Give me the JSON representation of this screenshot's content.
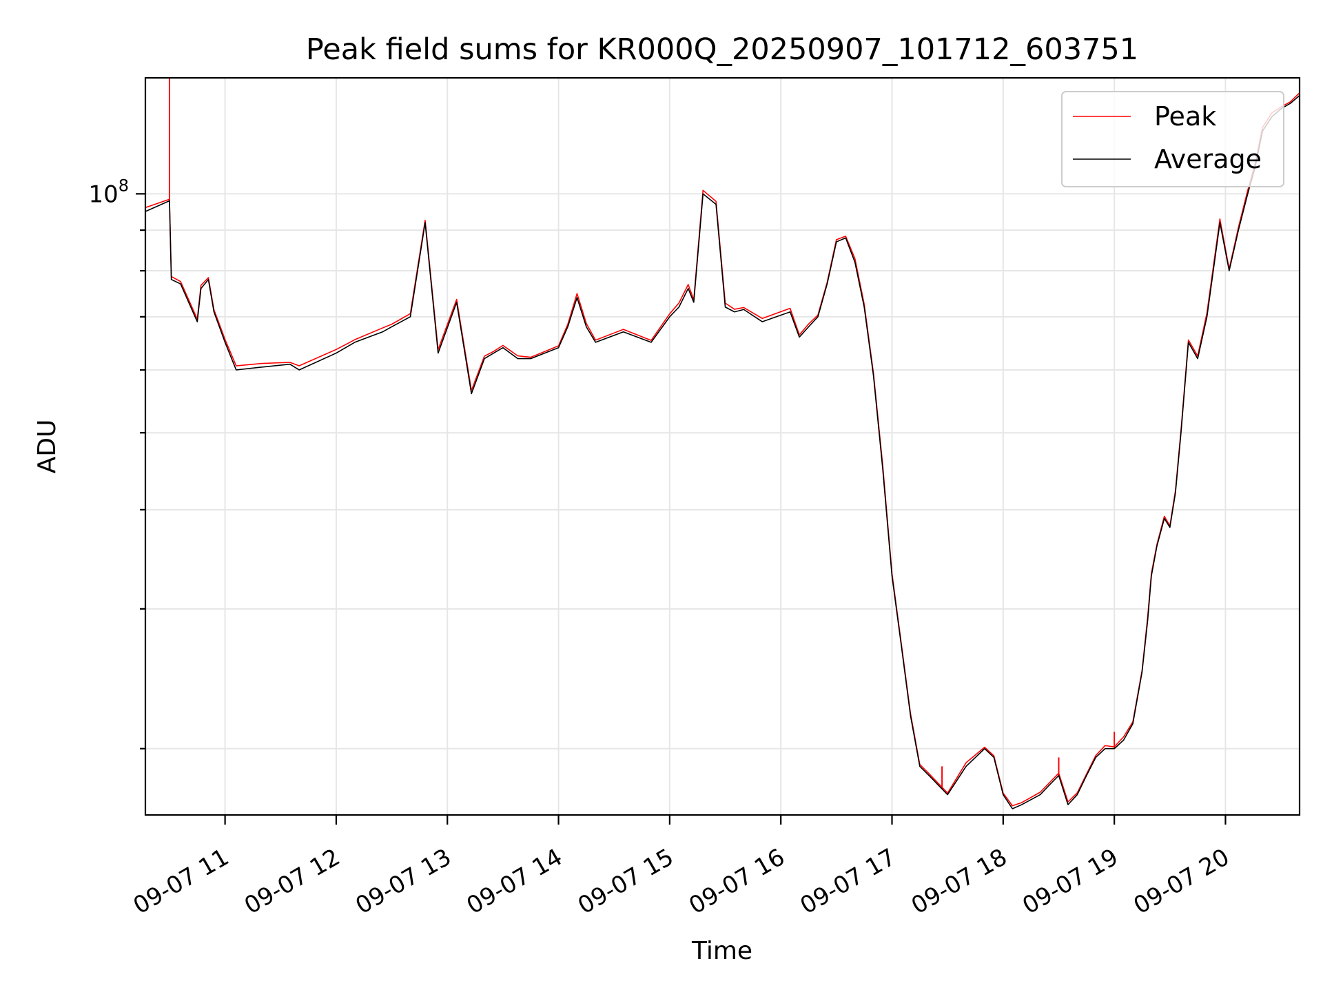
{
  "chart_data": {
    "type": "line",
    "title": "Peak field sums for KR000Q_20250907_101712_603751",
    "xlabel": "Time",
    "ylabel": "ADU",
    "y_scale": "log",
    "grid": true,
    "legend_position": "top-right",
    "x_range": [
      "2025-09-07T10:17",
      "2025-09-07T20:40"
    ],
    "y_range": [
      16500000,
      140000000
    ],
    "x_ticks": [
      {
        "time": "2025-09-07T11:00",
        "label": "09-07 11"
      },
      {
        "time": "2025-09-07T12:00",
        "label": "09-07 12"
      },
      {
        "time": "2025-09-07T13:00",
        "label": "09-07 13"
      },
      {
        "time": "2025-09-07T14:00",
        "label": "09-07 14"
      },
      {
        "time": "2025-09-07T15:00",
        "label": "09-07 15"
      },
      {
        "time": "2025-09-07T16:00",
        "label": "09-07 16"
      },
      {
        "time": "2025-09-07T17:00",
        "label": "09-07 17"
      },
      {
        "time": "2025-09-07T18:00",
        "label": "09-07 18"
      },
      {
        "time": "2025-09-07T19:00",
        "label": "09-07 19"
      },
      {
        "time": "2025-09-07T20:00",
        "label": "09-07 20"
      }
    ],
    "y_major_tick": {
      "value": 100000000,
      "base": "10",
      "exponent": "8"
    },
    "y_minor_ticks": [
      20000000,
      30000000,
      40000000,
      50000000,
      60000000,
      70000000,
      80000000,
      90000000
    ],
    "series": [
      {
        "name": "Peak",
        "color": "#ff0000",
        "spikes": [
          {
            "time": "2025-09-07T10:30",
            "value": 140000000
          },
          {
            "time": "2025-09-07T17:27",
            "value": 19000000
          },
          {
            "time": "2025-09-07T18:04",
            "value": 17000000
          },
          {
            "time": "2025-09-07T18:30",
            "value": 19500000
          },
          {
            "time": "2025-09-07T19:00",
            "value": 21000000
          }
        ]
      },
      {
        "name": "Average",
        "color": "#000000",
        "x": [
          "2025-09-07T10:17",
          "2025-09-07T10:30",
          "2025-09-07T10:31",
          "2025-09-07T10:36",
          "2025-09-07T10:45",
          "2025-09-07T10:47",
          "2025-09-07T10:51",
          "2025-09-07T10:54",
          "2025-09-07T11:00",
          "2025-09-07T11:06",
          "2025-09-07T11:20",
          "2025-09-07T11:35",
          "2025-09-07T11:40",
          "2025-09-07T12:00",
          "2025-09-07T12:10",
          "2025-09-07T12:25",
          "2025-09-07T12:30",
          "2025-09-07T12:40",
          "2025-09-07T12:48",
          "2025-09-07T12:55",
          "2025-09-07T13:05",
          "2025-09-07T13:13",
          "2025-09-07T13:20",
          "2025-09-07T13:25",
          "2025-09-07T13:30",
          "2025-09-07T13:38",
          "2025-09-07T13:45",
          "2025-09-07T14:00",
          "2025-09-07T14:05",
          "2025-09-07T14:10",
          "2025-09-07T14:15",
          "2025-09-07T14:20",
          "2025-09-07T14:35",
          "2025-09-07T14:50",
          "2025-09-07T15:00",
          "2025-09-07T15:05",
          "2025-09-07T15:10",
          "2025-09-07T15:13",
          "2025-09-07T15:18",
          "2025-09-07T15:25",
          "2025-09-07T15:30",
          "2025-09-07T15:35",
          "2025-09-07T15:40",
          "2025-09-07T15:50",
          "2025-09-07T16:05",
          "2025-09-07T16:10",
          "2025-09-07T16:15",
          "2025-09-07T16:20",
          "2025-09-07T16:25",
          "2025-09-07T16:30",
          "2025-09-07T16:35",
          "2025-09-07T16:40",
          "2025-09-07T16:45",
          "2025-09-07T16:50",
          "2025-09-07T16:55",
          "2025-09-07T17:00",
          "2025-09-07T17:05",
          "2025-09-07T17:10",
          "2025-09-07T17:15",
          "2025-09-07T17:20",
          "2025-09-07T17:30",
          "2025-09-07T17:40",
          "2025-09-07T17:50",
          "2025-09-07T17:55",
          "2025-09-07T18:00",
          "2025-09-07T18:05",
          "2025-09-07T18:10",
          "2025-09-07T18:20",
          "2025-09-07T18:25",
          "2025-09-07T18:30",
          "2025-09-07T18:35",
          "2025-09-07T18:40",
          "2025-09-07T18:45",
          "2025-09-07T18:50",
          "2025-09-07T18:55",
          "2025-09-07T19:00",
          "2025-09-07T19:05",
          "2025-09-07T19:10",
          "2025-09-07T19:15",
          "2025-09-07T19:18",
          "2025-09-07T19:20",
          "2025-09-07T19:23",
          "2025-09-07T19:27",
          "2025-09-07T19:30",
          "2025-09-07T19:33",
          "2025-09-07T19:36",
          "2025-09-07T19:40",
          "2025-09-07T19:45",
          "2025-09-07T19:50",
          "2025-09-07T19:57",
          "2025-09-07T20:02",
          "2025-09-07T20:07",
          "2025-09-07T20:12",
          "2025-09-07T20:16",
          "2025-09-07T20:20",
          "2025-09-07T20:25",
          "2025-09-07T20:30",
          "2025-09-07T20:35",
          "2025-09-07T20:40"
        ],
        "values": [
          95000000,
          98000000,
          78000000,
          77000000,
          69000000,
          76000000,
          78000000,
          71000000,
          65000000,
          60000000,
          60500000,
          61000000,
          60000000,
          63000000,
          65000000,
          67000000,
          68000000,
          70000000,
          92000000,
          63000000,
          73000000,
          56000000,
          62000000,
          63000000,
          64000000,
          62000000,
          62000000,
          64000000,
          68000000,
          74000000,
          68000000,
          65000000,
          67000000,
          65000000,
          70000000,
          72000000,
          76000000,
          73000000,
          100000000,
          97000000,
          72000000,
          71000000,
          71500000,
          69000000,
          71000000,
          66000000,
          68000000,
          70000000,
          77000000,
          87000000,
          88000000,
          82000000,
          72000000,
          59000000,
          45000000,
          33000000,
          27000000,
          22000000,
          19000000,
          18500000,
          17500000,
          19000000,
          20000000,
          19500000,
          17500000,
          16800000,
          17000000,
          17500000,
          18000000,
          18500000,
          17000000,
          17500000,
          18500000,
          19500000,
          20000000,
          20000000,
          20500000,
          21500000,
          25000000,
          29000000,
          33000000,
          36000000,
          39000000,
          38000000,
          42000000,
          50000000,
          65000000,
          62000000,
          70000000,
          92000000,
          80000000,
          90000000,
          100000000,
          108000000,
          120000000,
          125000000,
          128000000,
          130000000,
          133000000
        ]
      }
    ]
  }
}
